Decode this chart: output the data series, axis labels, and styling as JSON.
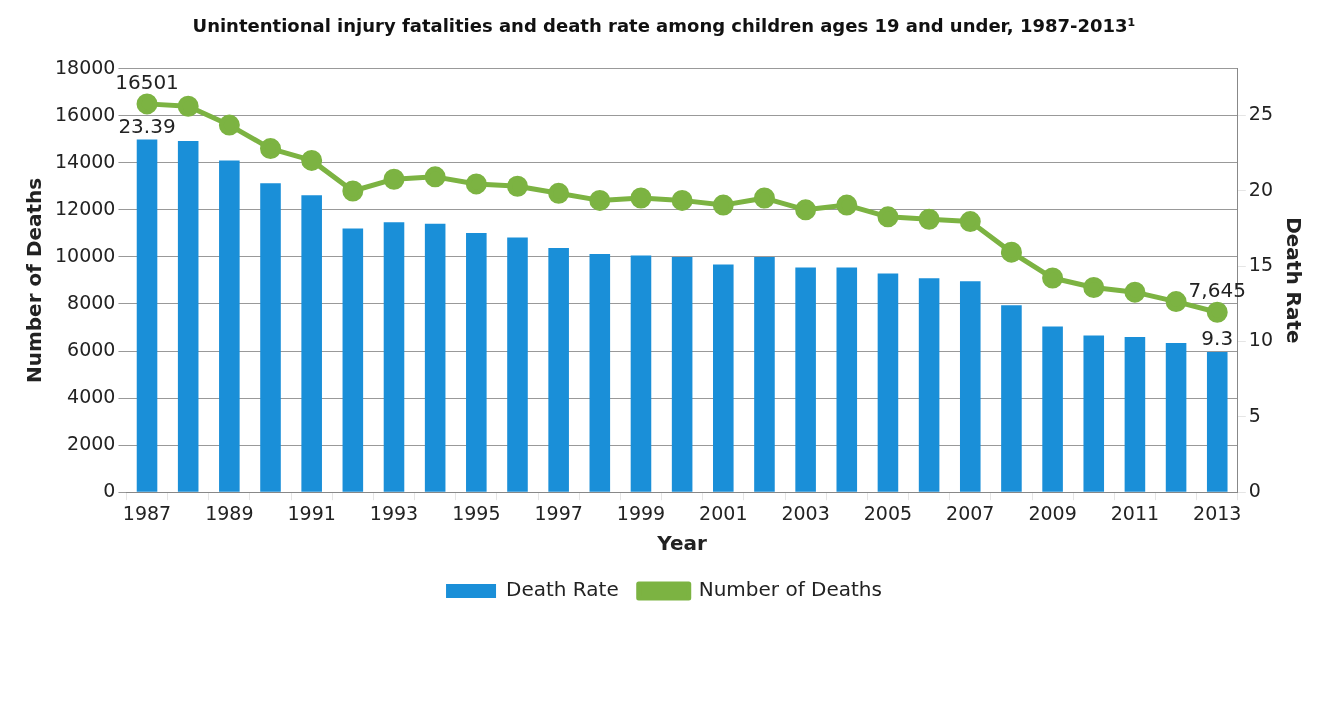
{
  "chart_data": {
    "type": "bar",
    "title": "Unintentional injury fatalities and death rate among children ages 19 and under, 1987-2013¹",
    "xlabel": "Year",
    "ylabel": "Number of Deaths",
    "y2label": "Death Rate",
    "categories": [
      "1987",
      null,
      "1989",
      null,
      "1991",
      null,
      "1993",
      null,
      "1995",
      null,
      "1997",
      null,
      "1999",
      null,
      "2001",
      null,
      "2003",
      null,
      "2005",
      null,
      "2007",
      null,
      "2009",
      null,
      "2011",
      null,
      "2013"
    ],
    "series": [
      {
        "name": "Death Rate",
        "axis": "y2",
        "color": "#1a8fd8",
        "values": [
          23.39,
          23.3,
          22.0,
          20.5,
          19.7,
          17.5,
          17.9,
          17.8,
          17.2,
          16.9,
          16.2,
          15.8,
          15.7,
          15.6,
          15.1,
          15.6,
          14.9,
          14.9,
          14.5,
          14.2,
          14.0,
          12.4,
          11.0,
          10.4,
          10.3,
          9.9,
          9.3
        ],
        "value_labels": [
          "23.39",
          null,
          null,
          null,
          null,
          null,
          null,
          null,
          null,
          null,
          null,
          null,
          null,
          null,
          null,
          null,
          null,
          null,
          null,
          null,
          null,
          null,
          null,
          null,
          null,
          null,
          "9.3"
        ]
      },
      {
        "name": "Number of Deaths",
        "type": "line",
        "color": "#7cb342",
        "values": [
          16501,
          16400,
          15600,
          14600,
          14100,
          12800,
          13300,
          13400,
          13100,
          13000,
          12700,
          12400,
          12500,
          12400,
          12200,
          12500,
          12000,
          12200,
          11700,
          11600,
          11500,
          10200,
          9100,
          8700,
          8500,
          8100,
          7645
        ],
        "value_labels": [
          "16501",
          null,
          null,
          null,
          null,
          null,
          null,
          null,
          null,
          null,
          null,
          null,
          null,
          null,
          null,
          null,
          null,
          null,
          null,
          null,
          null,
          null,
          null,
          null,
          null,
          null,
          "7,645"
        ]
      }
    ],
    "ylim": [
      0,
      18000
    ],
    "yticks": [
      0,
      2000,
      4000,
      6000,
      8000,
      10000,
      12000,
      14000,
      16000,
      18000
    ],
    "y2lim": [
      0,
      28.1
    ],
    "y2ticks": [
      0,
      5,
      10,
      15,
      20,
      25
    ],
    "grid": "y",
    "legend": "bottom",
    "marker": "circle"
  }
}
